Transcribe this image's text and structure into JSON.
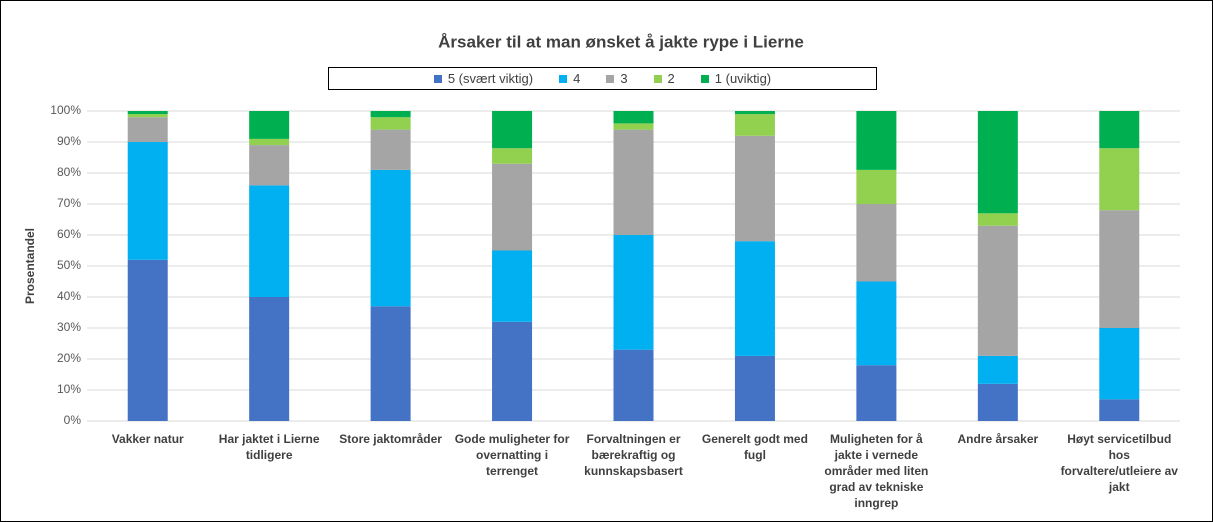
{
  "chart_data": {
    "type": "stacked_bar",
    "title": "Årsaker til at man ønsket å jakte rype i Lierne",
    "y_label": "Prosentandel",
    "categories": [
      "Vakker natur",
      "Har jaktet i Lierne tidligere",
      "Store jaktområder",
      "Gode muligheter for overnatting i terrenget",
      "Forvaltningen er bærekraftig og kunnskapsbasert",
      "Generelt godt med fugl",
      "Muligheten for å jakte i vernede områder med liten grad av tekniske inngrep",
      "Andre årsaker",
      "Høyt servicetilbud hos forvaltere/utleiere av jakt"
    ],
    "series": [
      {
        "name": "5 (svært viktig)",
        "color": "#4472c4",
        "values": [
          52,
          40,
          37,
          32,
          23,
          21,
          18,
          12,
          7
        ]
      },
      {
        "name": "4",
        "color": "#00b0f0",
        "values": [
          38,
          36,
          44,
          23,
          37,
          37,
          27,
          9,
          23
        ]
      },
      {
        "name": "3",
        "color": "#a5a5a5",
        "values": [
          8,
          13,
          13,
          28,
          34,
          34,
          25,
          42,
          38
        ]
      },
      {
        "name": "2",
        "color": "#92d050",
        "values": [
          1,
          2,
          4,
          5,
          2,
          7,
          11,
          4,
          20
        ]
      },
      {
        "name": "1 (uviktig)",
        "color": "#00b050",
        "values": [
          1,
          9,
          2,
          12,
          4,
          1,
          19,
          33,
          12
        ]
      }
    ],
    "ylim": [
      0,
      100
    ],
    "yticks": [
      {
        "value": 0,
        "label": "0%"
      },
      {
        "value": 10,
        "label": "10%"
      },
      {
        "value": 20,
        "label": "20%"
      },
      {
        "value": 30,
        "label": "30%"
      },
      {
        "value": 40,
        "label": "40%"
      },
      {
        "value": 50,
        "label": "50%"
      },
      {
        "value": 60,
        "label": "60%"
      },
      {
        "value": 70,
        "label": "70%"
      },
      {
        "value": 80,
        "label": "80%"
      },
      {
        "value": 90,
        "label": "90%"
      },
      {
        "value": 100,
        "label": "100%"
      }
    ],
    "grid": true
  }
}
